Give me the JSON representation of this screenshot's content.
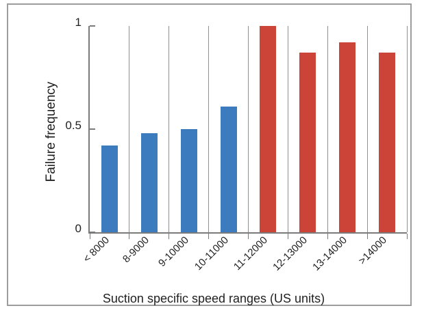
{
  "chart_data": {
    "type": "bar",
    "title": "",
    "xlabel": "Suction specific speed ranges (US units)",
    "ylabel": "Failure frequency",
    "categories": [
      "< 8000",
      "8-9000",
      "9-10000",
      "10-11000",
      "11-12000",
      "12-13000",
      "13-14000",
      ">14000"
    ],
    "values": [
      0.42,
      0.48,
      0.5,
      0.61,
      1.0,
      0.87,
      0.92,
      0.87
    ],
    "bar_colors": [
      "#3c7cbe",
      "#3c7cbe",
      "#3c7cbe",
      "#3c7cbe",
      "#cc4337",
      "#cc4337",
      "#cc4337",
      "#cc4337"
    ],
    "ylim": [
      0,
      1
    ],
    "yticks": [
      {
        "value": 0,
        "label": "0"
      },
      {
        "value": 0.5,
        "label": "0.5"
      },
      {
        "value": 1,
        "label": "1"
      }
    ],
    "legend": "none",
    "grid": "vertical-category-separators",
    "colors": {
      "blue_bars": "#3c7cbe",
      "red_bars": "#cc4337",
      "axis": "#7a7a7a",
      "gridline": "#909090",
      "frame_border": "#9c9c9c",
      "text": "#1f1f1f"
    }
  }
}
